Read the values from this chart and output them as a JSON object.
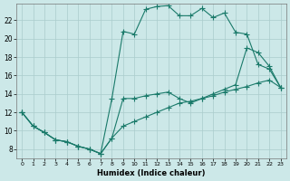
{
  "xlabel": "Humidex (Indice chaleur)",
  "background_color": "#cce8e8",
  "grid_color": "#aacccc",
  "line_color": "#1a7a6a",
  "xlim": [
    -0.5,
    23.5
  ],
  "ylim": [
    7.0,
    23.8
  ],
  "xticks": [
    0,
    1,
    2,
    3,
    4,
    5,
    6,
    7,
    8,
    9,
    10,
    11,
    12,
    13,
    14,
    15,
    16,
    17,
    18,
    19,
    20,
    21,
    22,
    23
  ],
  "yticks": [
    8,
    10,
    12,
    14,
    16,
    18,
    20,
    22
  ],
  "line1_x": [
    0,
    1,
    2,
    3,
    4,
    5,
    6,
    7,
    8,
    9,
    10,
    11,
    12,
    13,
    14,
    15,
    16,
    17,
    18,
    19,
    20,
    21,
    22,
    23
  ],
  "line1_y": [
    12.0,
    10.5,
    9.8,
    9.0,
    8.8,
    8.3,
    8.0,
    7.5,
    13.5,
    20.8,
    20.5,
    23.2,
    23.5,
    23.6,
    22.5,
    22.5,
    23.3,
    22.3,
    22.8,
    20.7,
    20.5,
    17.2,
    16.7,
    14.7
  ],
  "line2_x": [
    0,
    1,
    2,
    3,
    4,
    5,
    6,
    7,
    8,
    9,
    10,
    11,
    12,
    13,
    14,
    15,
    16,
    17,
    18,
    19,
    20,
    21,
    22,
    23
  ],
  "line2_y": [
    12.0,
    10.5,
    9.8,
    9.0,
    8.8,
    8.3,
    8.0,
    7.5,
    9.2,
    13.5,
    13.5,
    13.8,
    14.0,
    14.2,
    13.5,
    13.0,
    13.5,
    14.0,
    14.5,
    15.0,
    19.0,
    18.5,
    17.0,
    14.7
  ],
  "line3_x": [
    0,
    1,
    2,
    3,
    4,
    5,
    6,
    7,
    8,
    9,
    10,
    11,
    12,
    13,
    14,
    15,
    16,
    17,
    18,
    19,
    20,
    21,
    22,
    23
  ],
  "line3_y": [
    12.0,
    10.5,
    9.8,
    9.0,
    8.8,
    8.3,
    8.0,
    7.5,
    9.2,
    10.5,
    11.0,
    11.5,
    12.0,
    12.5,
    13.0,
    13.2,
    13.5,
    13.8,
    14.2,
    14.5,
    14.8,
    15.2,
    15.5,
    14.7
  ]
}
